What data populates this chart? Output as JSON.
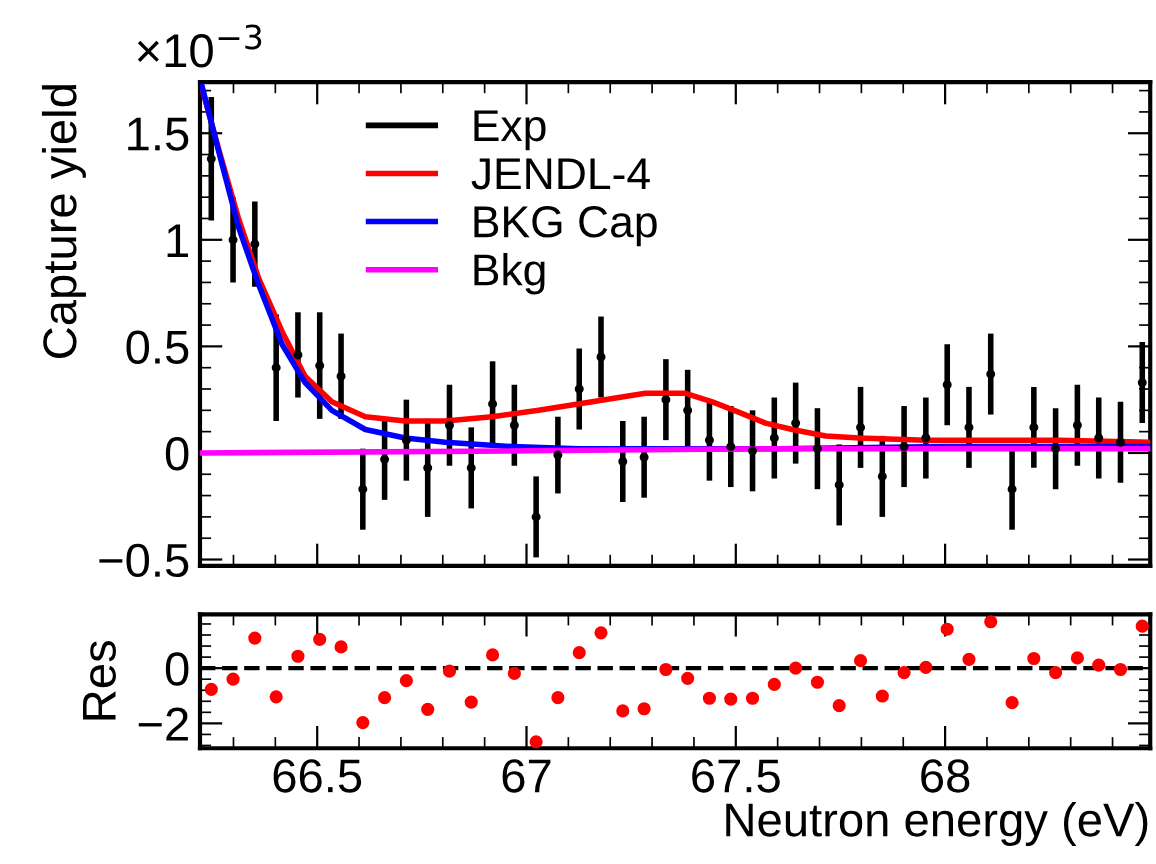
{
  "chart_data": [
    {
      "type": "line",
      "ylabel": "Capture yield",
      "annotations": [
        "×10$^{−3}$"
      ],
      "xlim": [
        66.22,
        68.49
      ],
      "ylim": [
        -0.53,
        1.74
      ],
      "yticks": [
        {
          "value": -0.5,
          "label": "−0.5"
        },
        0,
        0.5,
        1,
        1.5
      ],
      "tick_labels": "y",
      "legend": "top",
      "grid": false,
      "series": [
        {
          "name": "Exp",
          "type": "scatter",
          "marker": "circle",
          "color": "#000000",
          "x": [
            66.247,
            66.299,
            66.351,
            66.402,
            66.454,
            66.506,
            66.557,
            66.609,
            66.661,
            66.713,
            66.764,
            66.816,
            66.868,
            66.919,
            66.971,
            67.023,
            67.075,
            67.126,
            67.178,
            67.23,
            67.281,
            67.333,
            67.385,
            67.437,
            67.488,
            67.54,
            67.592,
            67.643,
            67.695,
            67.747,
            67.798,
            67.85,
            67.902,
            67.954,
            68.005,
            68.057,
            68.109,
            68.16,
            68.212,
            68.264,
            68.316,
            68.367,
            68.419,
            68.471
          ],
          "values": [
            1.38,
            1.0,
            0.98,
            0.4,
            0.46,
            0.41,
            0.36,
            -0.17,
            -0.03,
            0.06,
            -0.07,
            0.13,
            -0.07,
            0.23,
            0.13,
            -0.3,
            -0.01,
            0.3,
            0.45,
            -0.04,
            -0.02,
            0.25,
            0.2,
            0.06,
            0.03,
            0.01,
            0.07,
            0.14,
            0.02,
            -0.15,
            0.12,
            -0.11,
            0.03,
            0.07,
            0.32,
            0.12,
            0.37,
            -0.17,
            0.12,
            0.02,
            0.13,
            0.07,
            0.05,
            0.33
          ],
          "errors": [
            0.29,
            0.2,
            0.2,
            0.25,
            0.2,
            0.25,
            0.2,
            0.19,
            0.19,
            0.19,
            0.23,
            0.19,
            0.19,
            0.2,
            0.19,
            0.19,
            0.18,
            0.19,
            0.19,
            0.19,
            0.19,
            0.19,
            0.19,
            0.19,
            0.19,
            0.19,
            0.19,
            0.19,
            0.19,
            0.19,
            0.19,
            0.19,
            0.19,
            0.19,
            0.19,
            0.19,
            0.19,
            0.19,
            0.19,
            0.19,
            0.19,
            0.19,
            0.19,
            0.19
          ]
        },
        {
          "name": "JENDL-4",
          "type": "line",
          "color": "#ff0000",
          "x": [
            66.225,
            66.264,
            66.312,
            66.36,
            66.416,
            66.471,
            66.535,
            66.615,
            66.71,
            66.806,
            66.918,
            67.029,
            67.157,
            67.284,
            67.38,
            67.444,
            67.508,
            67.571,
            67.635,
            67.715,
            67.795,
            67.954,
            68.114,
            68.273,
            68.488
          ],
          "values": [
            1.71,
            1.43,
            1.1,
            0.82,
            0.57,
            0.36,
            0.24,
            0.17,
            0.15,
            0.15,
            0.17,
            0.2,
            0.24,
            0.28,
            0.28,
            0.24,
            0.19,
            0.14,
            0.11,
            0.08,
            0.07,
            0.06,
            0.06,
            0.06,
            0.05
          ]
        },
        {
          "name": "BKG Cap",
          "type": "line",
          "color": "#0000ff",
          "x": [
            66.225,
            66.264,
            66.312,
            66.36,
            66.416,
            66.471,
            66.535,
            66.615,
            66.71,
            66.806,
            66.965,
            67.125,
            67.6,
            68.0,
            68.488
          ],
          "values": [
            1.72,
            1.42,
            1.06,
            0.79,
            0.51,
            0.33,
            0.2,
            0.11,
            0.07,
            0.05,
            0.03,
            0.02,
            0.02,
            0.03,
            0.03
          ]
        },
        {
          "name": "Bkg",
          "type": "line",
          "color": "#ff00ff",
          "x": [
            66.225,
            67.0,
            67.6,
            68.488
          ],
          "values": [
            0.0,
            0.01,
            0.02,
            0.02
          ]
        }
      ]
    },
    {
      "type": "scatter",
      "xlabel": "Neutron energy (eV)",
      "ylabel": "Res",
      "xlim": [
        66.22,
        68.49
      ],
      "xticks": [
        66.5,
        67,
        67.5,
        68
      ],
      "ylim": [
        -2.9,
        1.95
      ],
      "yticks": [
        {
          "value": -2,
          "label": "−2"
        },
        0
      ],
      "marker": "circle",
      "grid": false,
      "ref_lines": [
        {
          "axis": "y",
          "value": 0,
          "color": "#000000",
          "line_style": "dashed"
        }
      ],
      "series": [
        {
          "color": "#ff0000",
          "x": [
            66.247,
            66.299,
            66.351,
            66.402,
            66.454,
            66.506,
            66.557,
            66.609,
            66.661,
            66.713,
            66.764,
            66.816,
            66.868,
            66.919,
            66.971,
            67.023,
            67.075,
            67.126,
            67.178,
            67.23,
            67.281,
            67.333,
            67.385,
            67.437,
            67.488,
            67.54,
            67.592,
            67.643,
            67.695,
            67.747,
            67.798,
            67.85,
            67.902,
            67.954,
            68.005,
            68.057,
            68.109,
            68.16,
            68.212,
            68.264,
            68.316,
            68.367,
            68.419,
            68.471
          ],
          "values": [
            -0.77,
            -0.4,
            1.09,
            -1.04,
            0.43,
            1.04,
            0.77,
            -1.97,
            -1.07,
            -0.45,
            -1.49,
            -0.11,
            -1.23,
            0.48,
            -0.19,
            -2.67,
            -1.07,
            0.56,
            1.28,
            -1.55,
            -1.47,
            -0.05,
            -0.37,
            -1.09,
            -1.12,
            -1.09,
            -0.59,
            0.0,
            -0.51,
            -1.36,
            0.27,
            -1.01,
            -0.16,
            0.03,
            1.41,
            0.32,
            1.68,
            -1.25,
            0.35,
            -0.16,
            0.37,
            0.11,
            -0.05,
            1.52
          ]
        }
      ]
    }
  ]
}
